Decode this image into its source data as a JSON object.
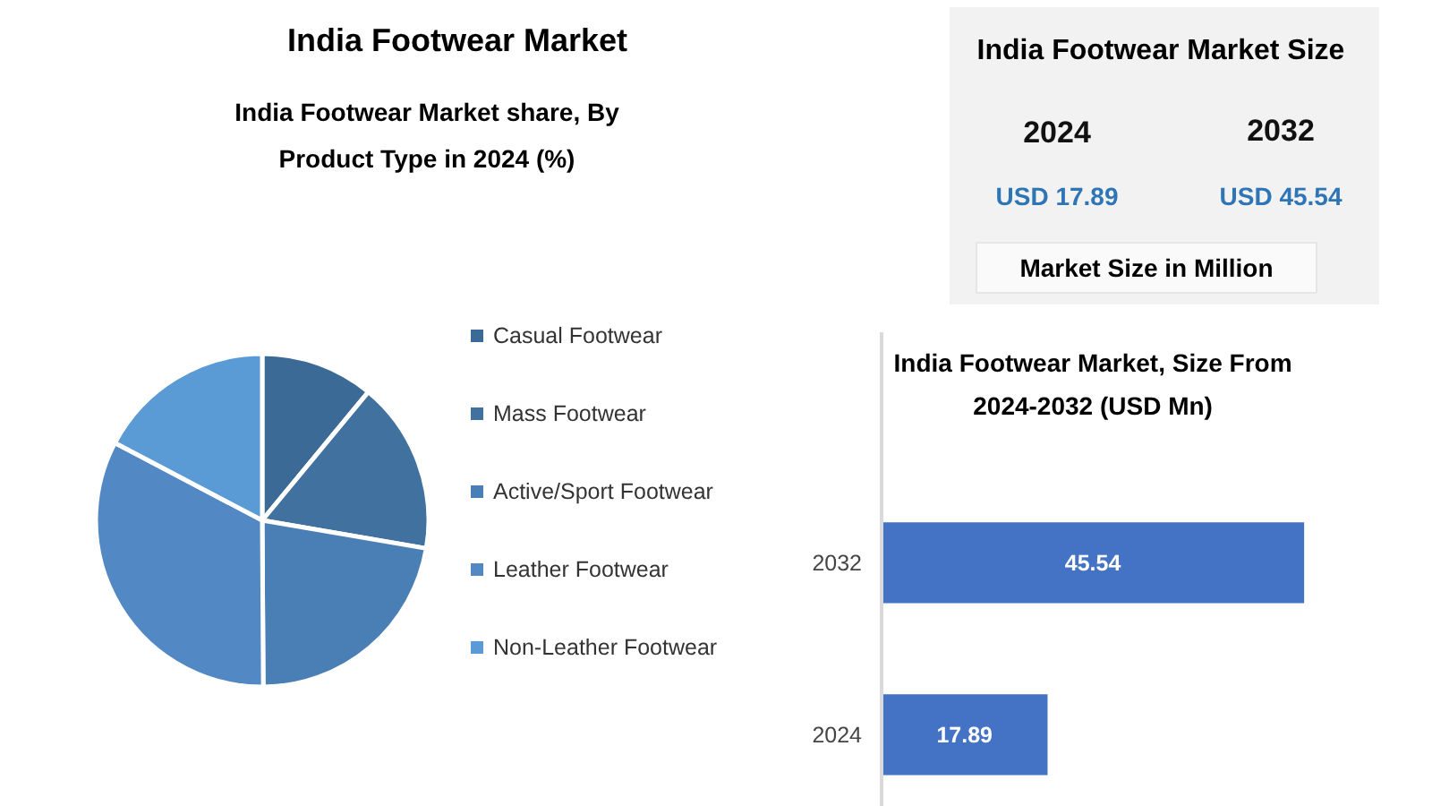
{
  "chart_data": [
    {
      "type": "pie",
      "title": "India Footwear Market",
      "subtitle": "India Footwear Market share, By Product Type in 2024 (%)",
      "categories": [
        "Casual Footwear",
        "Mass Footwear",
        "Active/Sport Footwear",
        "Leather Footwear",
        "Non-Leather Footwear"
      ],
      "values": [
        11,
        16.7,
        22.2,
        32.8,
        17.3
      ],
      "colors": [
        "#3c6a96",
        "#41719f",
        "#4a7fb5",
        "#5289c4",
        "#5b9bd5"
      ],
      "legend": "right"
    },
    {
      "type": "other",
      "title": "India Footwear Market Size",
      "annotations": [
        "2024",
        "2032",
        "USD 17.89",
        "USD 45.54",
        "Market Size in Million"
      ]
    },
    {
      "type": "bar",
      "title": "India Footwear Market, Size From 2024-2032 (USD Mn)",
      "orientation": "horizontal",
      "categories": [
        "2032",
        "2024"
      ],
      "values": [
        45.54,
        17.89
      ],
      "color": "#4472c4",
      "data_labels": true,
      "tick_labels": "y"
    }
  ]
}
